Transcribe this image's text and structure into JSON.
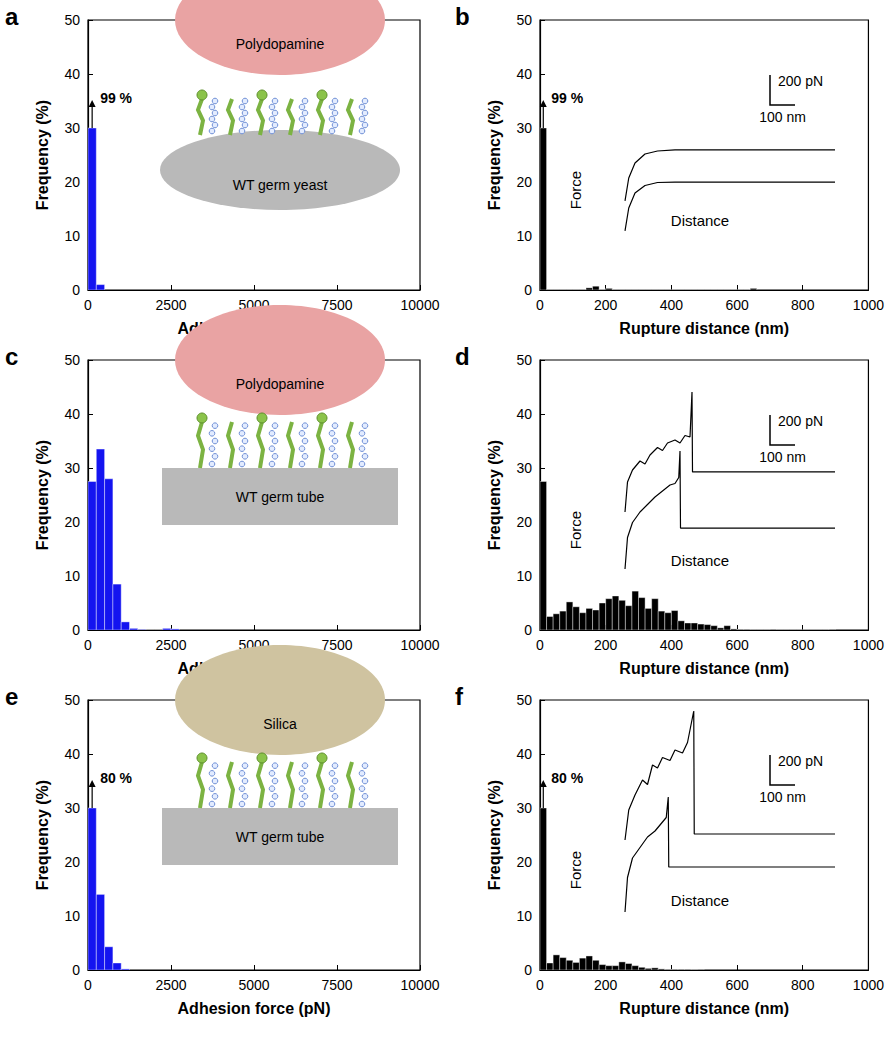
{
  "chart_data": [
    {
      "panel": "a",
      "type": "histogram",
      "x_label": "Adhesion force (pN)",
      "y_label": "Frequency (%)",
      "color": "#1414f0",
      "bins": [
        0,
        250,
        500
      ],
      "counts": [
        30,
        1
      ],
      "xlim": [
        0,
        10000
      ],
      "xticks": [
        0,
        2500,
        5000,
        7500,
        10000
      ],
      "ylim": [
        0,
        50
      ],
      "yticks": [
        0,
        10,
        20,
        30,
        40,
        50
      ],
      "annotation": "99 %",
      "schematic": {
        "probe": "Polydopamine",
        "probe_color": "#e9a3a3",
        "sample": "WT germ yeast",
        "sample_color": "#b9b9b9",
        "shape": "dome"
      }
    },
    {
      "panel": "b",
      "type": "histogram",
      "x_label": "Rupture distance (nm)",
      "y_label": "Frequency (%)",
      "color": "#000000",
      "bins": [
        0,
        20,
        40,
        60,
        80,
        100,
        120,
        140,
        160,
        180,
        200,
        220,
        240,
        260,
        280,
        300,
        320,
        340,
        360,
        380,
        400,
        420,
        440,
        460,
        480,
        500,
        520,
        540,
        560,
        580,
        600,
        620,
        640,
        660
      ],
      "counts": [
        30,
        0,
        0,
        0,
        0,
        0,
        0,
        0.4,
        0.7,
        0,
        0.3,
        0,
        0,
        0,
        0,
        0,
        0,
        0,
        0,
        0,
        0,
        0,
        0,
        0,
        0,
        0,
        0,
        0,
        0,
        0,
        0,
        0,
        0.3
      ],
      "xlim": [
        0,
        1000
      ],
      "xticks": [
        0,
        200,
        400,
        600,
        800,
        1000
      ],
      "ylim": [
        0,
        50
      ],
      "yticks": [
        0,
        10,
        20,
        30,
        40,
        50
      ],
      "annotation": "99 %",
      "inset": {
        "x_label": "Distance",
        "y_label": "Force",
        "xlim": [
          0,
          840
        ],
        "ylim": [
          0,
          600
        ],
        "curves": [
          {
            "x": [
              0,
              15,
              40,
              80,
              130,
              200,
              840
            ],
            "y": [
              227,
              380,
              480,
              540,
              560,
              567,
              567
            ]
          },
          {
            "x": [
              0,
              15,
              40,
              80,
              130,
              200,
              840
            ],
            "y": [
              27,
              180,
              280,
              330,
              350,
              353,
              353
            ]
          }
        ],
        "scale_bar": {
          "y": 200,
          "y_label": "200 pN",
          "x": 100,
          "x_label": "100 nm"
        }
      }
    },
    {
      "panel": "c",
      "type": "histogram",
      "x_label": "Adhesion force (pN)",
      "y_label": "Frequency (%)",
      "color": "#1414f0",
      "bins": [
        0,
        250,
        500,
        750,
        1000,
        1250,
        1500,
        1750,
        2000,
        2250,
        2500,
        2750
      ],
      "counts": [
        27.5,
        33.5,
        28,
        8.5,
        1.5,
        0.3,
        0.1,
        0,
        0,
        0.3,
        0.2
      ],
      "xlim": [
        0,
        10000
      ],
      "xticks": [
        0,
        2500,
        5000,
        7500,
        10000
      ],
      "ylim": [
        0,
        50
      ],
      "yticks": [
        0,
        10,
        20,
        30,
        40,
        50
      ],
      "schematic": {
        "probe": "Polydopamine",
        "probe_color": "#e9a3a3",
        "sample": "WT germ tube",
        "sample_color": "#b9b9b9",
        "shape": "slab"
      }
    },
    {
      "panel": "d",
      "type": "histogram",
      "x_label": "Rupture distance (nm)",
      "y_label": "Frequency (%)",
      "color": "#000000",
      "bins": [
        0,
        20,
        40,
        60,
        80,
        100,
        120,
        140,
        160,
        180,
        200,
        220,
        240,
        260,
        280,
        300,
        320,
        340,
        360,
        380,
        400,
        420,
        440,
        460,
        480,
        500,
        520,
        540,
        560,
        580,
        600,
        620,
        640,
        660,
        680,
        700,
        720,
        740,
        760,
        780,
        800,
        820,
        840,
        860,
        880,
        900
      ],
      "counts": [
        27.5,
        2.5,
        3,
        3.5,
        5.2,
        4.3,
        3.2,
        4,
        3.7,
        5,
        5.8,
        6.3,
        5.5,
        4.5,
        7.2,
        6,
        4,
        5.8,
        3.5,
        3.2,
        3.6,
        1.7,
        1.3,
        1.3,
        1.1,
        1,
        0.8,
        0.4,
        0.8,
        0.2,
        0.1,
        0.1,
        0,
        0,
        0,
        0.1,
        0,
        0,
        0,
        0,
        0,
        0,
        0,
        0,
        0.1
      ],
      "xlim": [
        0,
        1000
      ],
      "xticks": [
        0,
        200,
        400,
        600,
        800,
        1000
      ],
      "ylim": [
        0,
        50
      ],
      "yticks": [
        0,
        10,
        20,
        30,
        40,
        50
      ],
      "inset": {
        "x_label": "Distance",
        "y_label": "Force",
        "xlim": [
          0,
          840
        ],
        "ylim": [
          0,
          1300
        ],
        "curves": [
          {
            "x": [
              0,
              10,
              30,
              60,
              80,
              100,
              130,
              150,
              170,
              200,
              220,
              240,
              260,
              268,
              270,
              840
            ],
            "y": [
              420,
              620,
              700,
              760,
              740,
              800,
              850,
              830,
              880,
              900,
              880,
              930,
              920,
              1220,
              687,
              687
            ]
          },
          {
            "x": [
              0,
              10,
              30,
              60,
              90,
              120,
              150,
              180,
              200,
              215,
              220,
              222,
              840
            ],
            "y": [
              40,
              250,
              350,
              420,
              470,
              520,
              560,
              600,
              610,
              650,
              827,
              313,
              313
            ]
          }
        ],
        "scale_bar": {
          "y": 200,
          "y_label": "200 pN",
          "x": 100,
          "x_label": "100 nm"
        }
      }
    },
    {
      "panel": "e",
      "type": "histogram",
      "x_label": "Adhesion force (pN)",
      "y_label": "Frequency (%)",
      "color": "#1414f0",
      "bins": [
        0,
        250,
        500,
        750,
        1000,
        1250
      ],
      "counts": [
        30,
        14,
        4.3,
        1.3,
        0.2
      ],
      "xlim": [
        0,
        10000
      ],
      "xticks": [
        0,
        2500,
        5000,
        7500,
        10000
      ],
      "ylim": [
        0,
        50
      ],
      "yticks": [
        0,
        10,
        20,
        30,
        40,
        50
      ],
      "annotation": "80 %",
      "schematic": {
        "probe": "Silica",
        "probe_color": "#cfc3a0",
        "sample": "WT germ tube",
        "sample_color": "#b9b9b9",
        "shape": "slab"
      }
    },
    {
      "panel": "f",
      "type": "histogram",
      "x_label": "Rupture distance (nm)",
      "y_label": "Frequency (%)",
      "color": "#000000",
      "bins": [
        0,
        20,
        40,
        60,
        80,
        100,
        120,
        140,
        160,
        180,
        200,
        220,
        240,
        260,
        280,
        300,
        320,
        340,
        360,
        380,
        400,
        420,
        440,
        460,
        480,
        500
      ],
      "counts": [
        30,
        1.3,
        2.8,
        2.3,
        1.8,
        1.4,
        2.2,
        2.6,
        1.8,
        1,
        0.8,
        0.8,
        1.5,
        1.2,
        0.8,
        0.5,
        0.3,
        0.4,
        0.2,
        0.1,
        0.1,
        0.1,
        0.1,
        0,
        0.1
      ],
      "xlim": [
        0,
        1000
      ],
      "xticks": [
        0,
        200,
        400,
        600,
        800,
        1000
      ],
      "ylim": [
        0,
        50
      ],
      "yticks": [
        0,
        10,
        20,
        30,
        40,
        50
      ],
      "annotation": "80 %",
      "inset": {
        "x_label": "Distance",
        "y_label": "Force",
        "xlim": [
          0,
          840
        ],
        "ylim": [
          0,
          1400
        ],
        "curves": [
          {
            "x": [
              0,
              15,
              40,
              70,
              90,
              110,
              130,
              150,
              180,
              200,
              230,
              250,
              275,
              277,
              840
            ],
            "y": [
              500,
              700,
              800,
              900,
              870,
              1000,
              980,
              1050,
              1030,
              1100,
              1080,
              1150,
              1360,
              540,
              540
            ]
          },
          {
            "x": [
              0,
              10,
              30,
              60,
              90,
              120,
              150,
              165,
              173,
              175,
              840
            ],
            "y": [
              20,
              250,
              380,
              450,
              520,
              560,
              620,
              650,
              787,
              320,
              320
            ]
          }
        ],
        "scale_bar": {
          "y": 200,
          "y_label": "200 pN",
          "x": 100,
          "x_label": "100 nm"
        }
      }
    }
  ]
}
